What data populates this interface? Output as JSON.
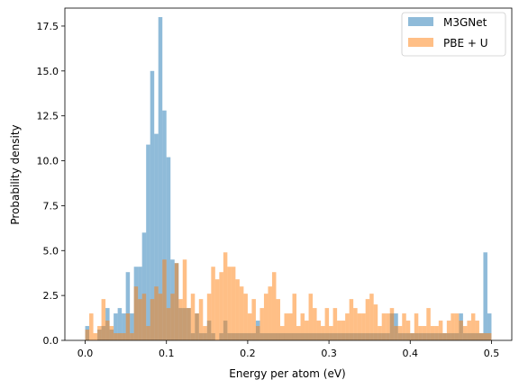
{
  "chart_data": {
    "type": "histogram",
    "title": "",
    "xlabel": "Energy per atom (eV)",
    "ylabel": "Probability density",
    "xlim": [
      -0.025,
      0.525
    ],
    "ylim": [
      0,
      18.5
    ],
    "xticks": [
      0.0,
      0.1,
      0.2,
      0.3,
      0.4,
      0.5
    ],
    "xtick_labels": [
      "0.0",
      "0.1",
      "0.2",
      "0.3",
      "0.4",
      "0.5"
    ],
    "yticks": [
      0.0,
      2.5,
      5.0,
      7.5,
      10.0,
      12.5,
      15.0,
      17.5
    ],
    "ytick_labels": [
      "0.0",
      "2.5",
      "5.0",
      "7.5",
      "10.0",
      "12.5",
      "15.0",
      "17.5"
    ],
    "grid": false,
    "legend_position": "top-right",
    "bin_width": 0.005,
    "bin_start": 0.0,
    "series": [
      {
        "name": "M3GNet",
        "color": "#1f77b4",
        "opacity": 0.5,
        "values": [
          0.8,
          0,
          0,
          0.6,
          0.8,
          1.8,
          0.6,
          1.5,
          1.8,
          1.5,
          3.8,
          1.5,
          4.1,
          4.1,
          6.0,
          10.9,
          15.0,
          11.5,
          18.0,
          12.8,
          10.2,
          4.5,
          4.3,
          1.8,
          1.8,
          1.8,
          0.4,
          1.5,
          0.4,
          0.4,
          1.1,
          0.4,
          0,
          0.4,
          1.1,
          0.4,
          0.4,
          0.4,
          0.4,
          0.4,
          0.4,
          0.4,
          1.1,
          0.4,
          0.4,
          0.4,
          0.4,
          0.4,
          0.4,
          0.4,
          0.4,
          0.4,
          0.4,
          0.4,
          0.4,
          0.4,
          0.4,
          0.4,
          0.4,
          0.4,
          0.4,
          0.4,
          0.4,
          0.4,
          0.4,
          0.4,
          0.4,
          0.4,
          0.4,
          0.4,
          0.4,
          0.4,
          0.4,
          0.4,
          0.4,
          1.5,
          1.5,
          0.4,
          0.4,
          0.4,
          0.4,
          0.4,
          0.4,
          0.4,
          0.4,
          0.4,
          0.4,
          0.4,
          0.4,
          0.4,
          0.4,
          0.4,
          1.5,
          0.4,
          0.4,
          0.4,
          0.4,
          0.4,
          4.9,
          1.5
        ]
      },
      {
        "name": "PBE + U",
        "color": "#ff7f0e",
        "opacity": 0.5,
        "values": [
          0.6,
          1.5,
          0.4,
          0.8,
          2.3,
          1.1,
          0.8,
          0.4,
          0.4,
          0.4,
          1.5,
          0.4,
          3.0,
          2.3,
          2.6,
          0.8,
          2.3,
          3.0,
          2.6,
          4.5,
          1.8,
          2.6,
          4.3,
          2.3,
          4.5,
          1.8,
          2.6,
          1.5,
          2.3,
          0.8,
          2.6,
          4.1,
          3.4,
          3.8,
          4.9,
          4.1,
          4.1,
          3.4,
          3.0,
          2.6,
          1.5,
          2.3,
          0.8,
          1.8,
          2.6,
          3.0,
          3.8,
          2.3,
          0.8,
          1.5,
          1.5,
          2.6,
          0.8,
          1.5,
          1.1,
          2.6,
          1.8,
          1.1,
          0.8,
          1.8,
          0.8,
          1.8,
          1.1,
          1.1,
          1.5,
          2.3,
          1.8,
          1.5,
          1.5,
          2.3,
          2.6,
          2.0,
          0.8,
          1.5,
          1.5,
          1.8,
          0.8,
          0.8,
          1.5,
          1.1,
          0.4,
          1.5,
          0.8,
          0.8,
          1.8,
          0.8,
          0.8,
          1.1,
          0.4,
          1.1,
          1.5,
          1.5,
          1.1,
          0.8,
          1.1,
          1.5,
          1.1,
          0.4,
          0.4,
          0.4
        ]
      }
    ]
  }
}
